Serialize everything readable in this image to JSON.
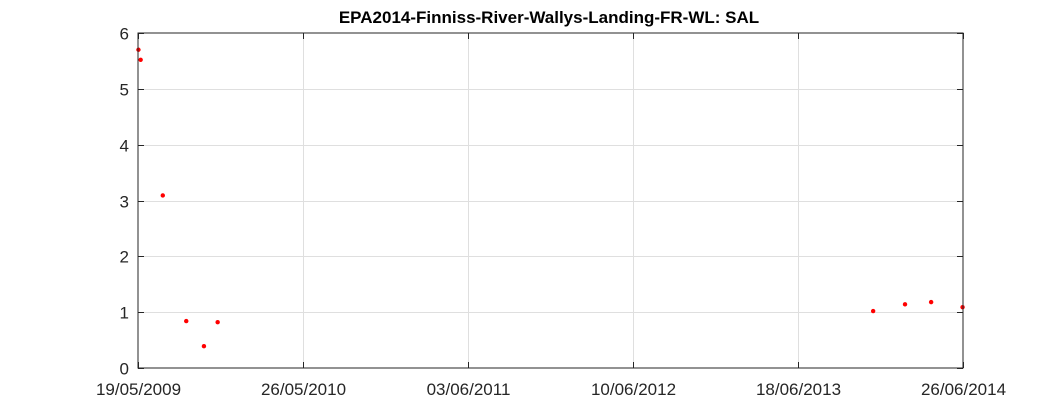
{
  "chart_data": {
    "type": "scatter",
    "title": "EPA2014-Finniss-River-Wallys-Landing-FR-WL: SAL",
    "xlabel": "",
    "ylabel": "",
    "x_axis_type": "date",
    "xlim": [
      "2009-05-19",
      "2014-06-26"
    ],
    "ylim": [
      0,
      6
    ],
    "x_ticks": [
      {
        "date": "2009-05-19",
        "label": "19/05/2009"
      },
      {
        "date": "2010-05-26",
        "label": "26/05/2010"
      },
      {
        "date": "2011-06-03",
        "label": "03/06/2011"
      },
      {
        "date": "2012-06-10",
        "label": "10/06/2012"
      },
      {
        "date": "2013-06-18",
        "label": "18/06/2013"
      },
      {
        "date": "2014-06-26",
        "label": "26/06/2014"
      }
    ],
    "y_ticks": [
      0,
      1,
      2,
      3,
      4,
      5,
      6
    ],
    "grid": true,
    "marker_color": "#ff0000",
    "points": [
      {
        "x": "2009-05-20",
        "y": 5.7
      },
      {
        "x": "2009-05-25",
        "y": 5.52
      },
      {
        "x": "2009-07-14",
        "y": 3.09
      },
      {
        "x": "2009-09-05",
        "y": 0.84
      },
      {
        "x": "2009-10-15",
        "y": 0.39
      },
      {
        "x": "2009-11-15",
        "y": 0.82
      },
      {
        "x": "2013-12-05",
        "y": 1.02
      },
      {
        "x": "2014-02-15",
        "y": 1.14
      },
      {
        "x": "2014-04-15",
        "y": 1.18
      },
      {
        "x": "2014-06-25",
        "y": 1.09
      }
    ]
  }
}
